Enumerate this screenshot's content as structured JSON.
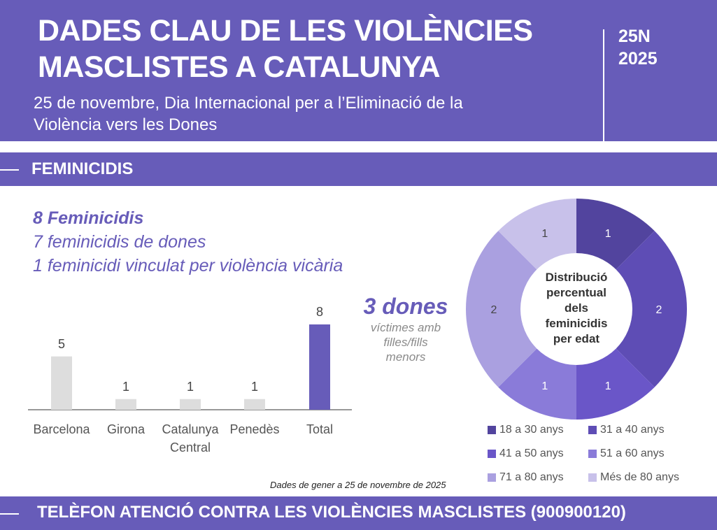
{
  "header": {
    "title_line1": "DADES CLAU DE LES VIOLÈNCIES",
    "title_line2": "MASCLISTES A CATALUNYA",
    "subtitle_line1": "25 de novembre, Dia Internacional per a l’Eliminació de la",
    "subtitle_line2": "Violència vers les Dones",
    "tag_line1": "25N",
    "tag_line2": "2025"
  },
  "section": {
    "title": "FEMINICIDIS"
  },
  "stats": {
    "total": "8 Feminicidis",
    "line2": "7 feminicidis de dones",
    "line3": "1 feminicidi vinculat per violència vicària"
  },
  "children": {
    "big": "3 dones",
    "line1": "víctimes amb",
    "line2": "filles/fills",
    "line3": "menors"
  },
  "note": "Dades de gener a 25 de novembre de 2025",
  "footer": {
    "title": "TELÈFON ATENCIÓ CONTRA LES VIOLÈNCIES MASCLISTES (900900120)"
  },
  "chart_data": [
    {
      "type": "bar",
      "categories": [
        "Barcelona",
        "Girona",
        "Catalunya Central",
        "Penedès",
        "Total"
      ],
      "values": [
        5,
        1,
        1,
        1,
        8
      ],
      "colors": [
        "#dddddd",
        "#dddddd",
        "#dddddd",
        "#dddddd",
        "#675cb9"
      ],
      "data_labels": true
    },
    {
      "type": "pie",
      "donut": true,
      "center_label": "Distribució percentual dels feminicidis per edat",
      "categories": [
        "18 a 30 anys",
        "31 a 40 anys",
        "41 a 50 anys",
        "51 a 60 anys",
        "71 a 80 anys",
        "Més de 80 anys"
      ],
      "values": [
        1,
        2,
        1,
        1,
        2,
        1
      ],
      "colors": [
        "#52449e",
        "#5e4db5",
        "#6a56c8",
        "#8a7bd9",
        "#aaa0e0",
        "#c8c1ea"
      ],
      "legend": "bottom"
    }
  ]
}
